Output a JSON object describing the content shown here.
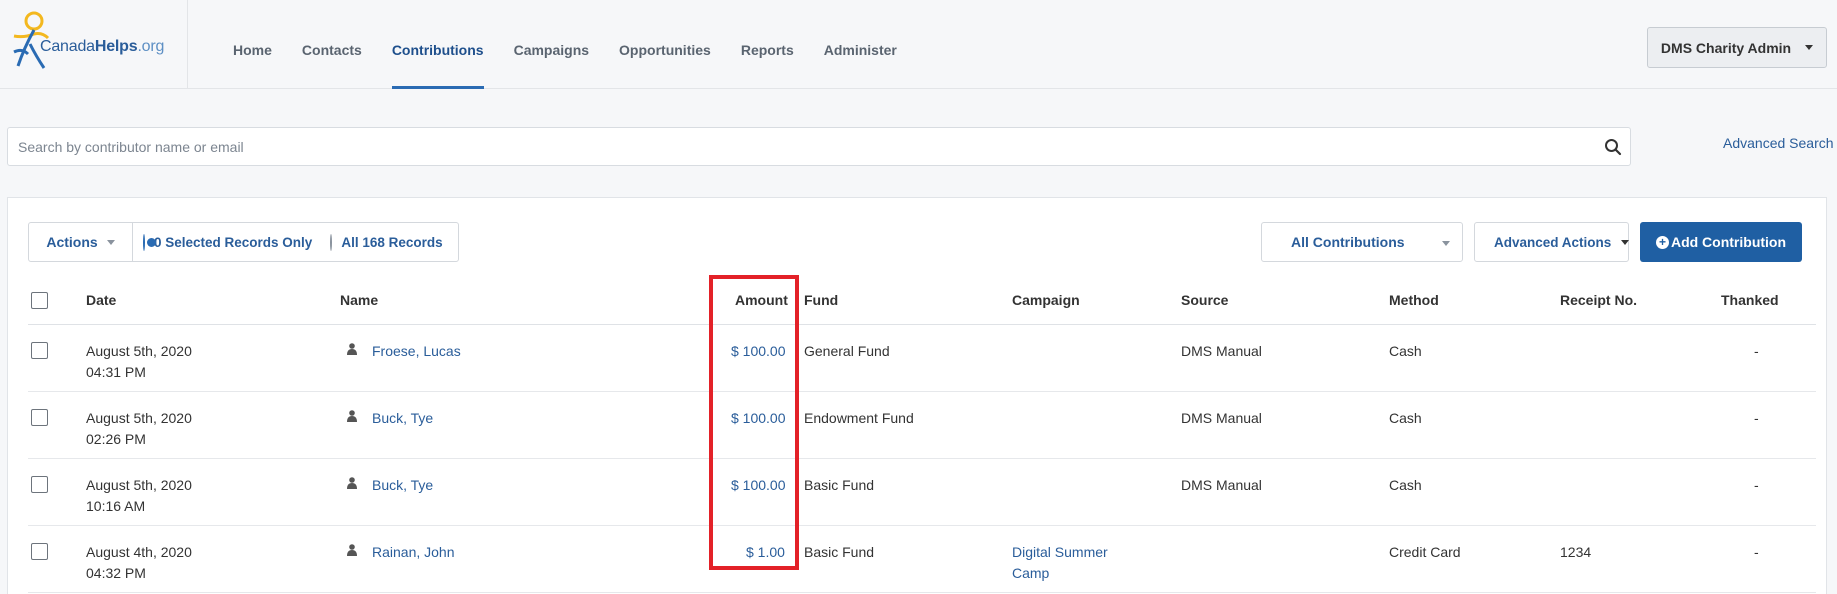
{
  "brand": {
    "name_part1": "Canada",
    "name_part2": "Helps",
    "name_part3": ".org"
  },
  "nav": {
    "items": [
      {
        "label": "Home"
      },
      {
        "label": "Contacts"
      },
      {
        "label": "Contributions"
      },
      {
        "label": "Campaigns"
      },
      {
        "label": "Opportunities"
      },
      {
        "label": "Reports"
      },
      {
        "label": "Administer"
      }
    ],
    "active": "Contributions"
  },
  "user_menu": {
    "label": "DMS Charity Admin"
  },
  "search": {
    "placeholder": "Search by contributor name or email",
    "value": "",
    "advanced_label": "Advanced Search"
  },
  "toolbar": {
    "actions_label": "Actions",
    "selected_label": "0 Selected Records Only",
    "all_label": "All 168 Records",
    "filter_label": "All Contributions",
    "advanced_actions_label": "Advanced Actions",
    "add_label": "Add Contribution"
  },
  "table": {
    "columns": [
      "Date",
      "Name",
      "Amount",
      "Fund",
      "Campaign",
      "Source",
      "Method",
      "Receipt No.",
      "Thanked"
    ],
    "rows": [
      {
        "date": "August 5th, 2020",
        "time": "04:31 PM",
        "name": "Froese, Lucas",
        "amount": "$ 100.00",
        "fund": "General Fund",
        "campaign_line1": "",
        "campaign_line2": "",
        "source": "DMS Manual",
        "method": "Cash",
        "receipt": "",
        "thanked": "-"
      },
      {
        "date": "August 5th, 2020",
        "time": "02:26 PM",
        "name": "Buck, Tye",
        "amount": "$ 100.00",
        "fund": "Endowment Fund",
        "campaign_line1": "",
        "campaign_line2": "",
        "source": "DMS Manual",
        "method": "Cash",
        "receipt": "",
        "thanked": "-"
      },
      {
        "date": "August 5th, 2020",
        "time": "10:16 AM",
        "name": "Buck, Tye",
        "amount": "$ 100.00",
        "fund": "Basic Fund",
        "campaign_line1": "",
        "campaign_line2": "",
        "source": "DMS Manual",
        "method": "Cash",
        "receipt": "",
        "thanked": "-"
      },
      {
        "date": "August 4th, 2020",
        "time": "04:32 PM",
        "name": "Rainan, John",
        "amount": "$ 1.00",
        "fund": "Basic Fund",
        "campaign_line1": "Digital Summer",
        "campaign_line2": "Camp",
        "source": "",
        "method": "Credit Card",
        "receipt": "1234",
        "thanked": "-"
      }
    ]
  },
  "colors": {
    "accent": "#2a5d9a",
    "primary_button": "#1f5fa3",
    "highlight": "#e32128",
    "logo_yellow": "#f3b81f"
  }
}
